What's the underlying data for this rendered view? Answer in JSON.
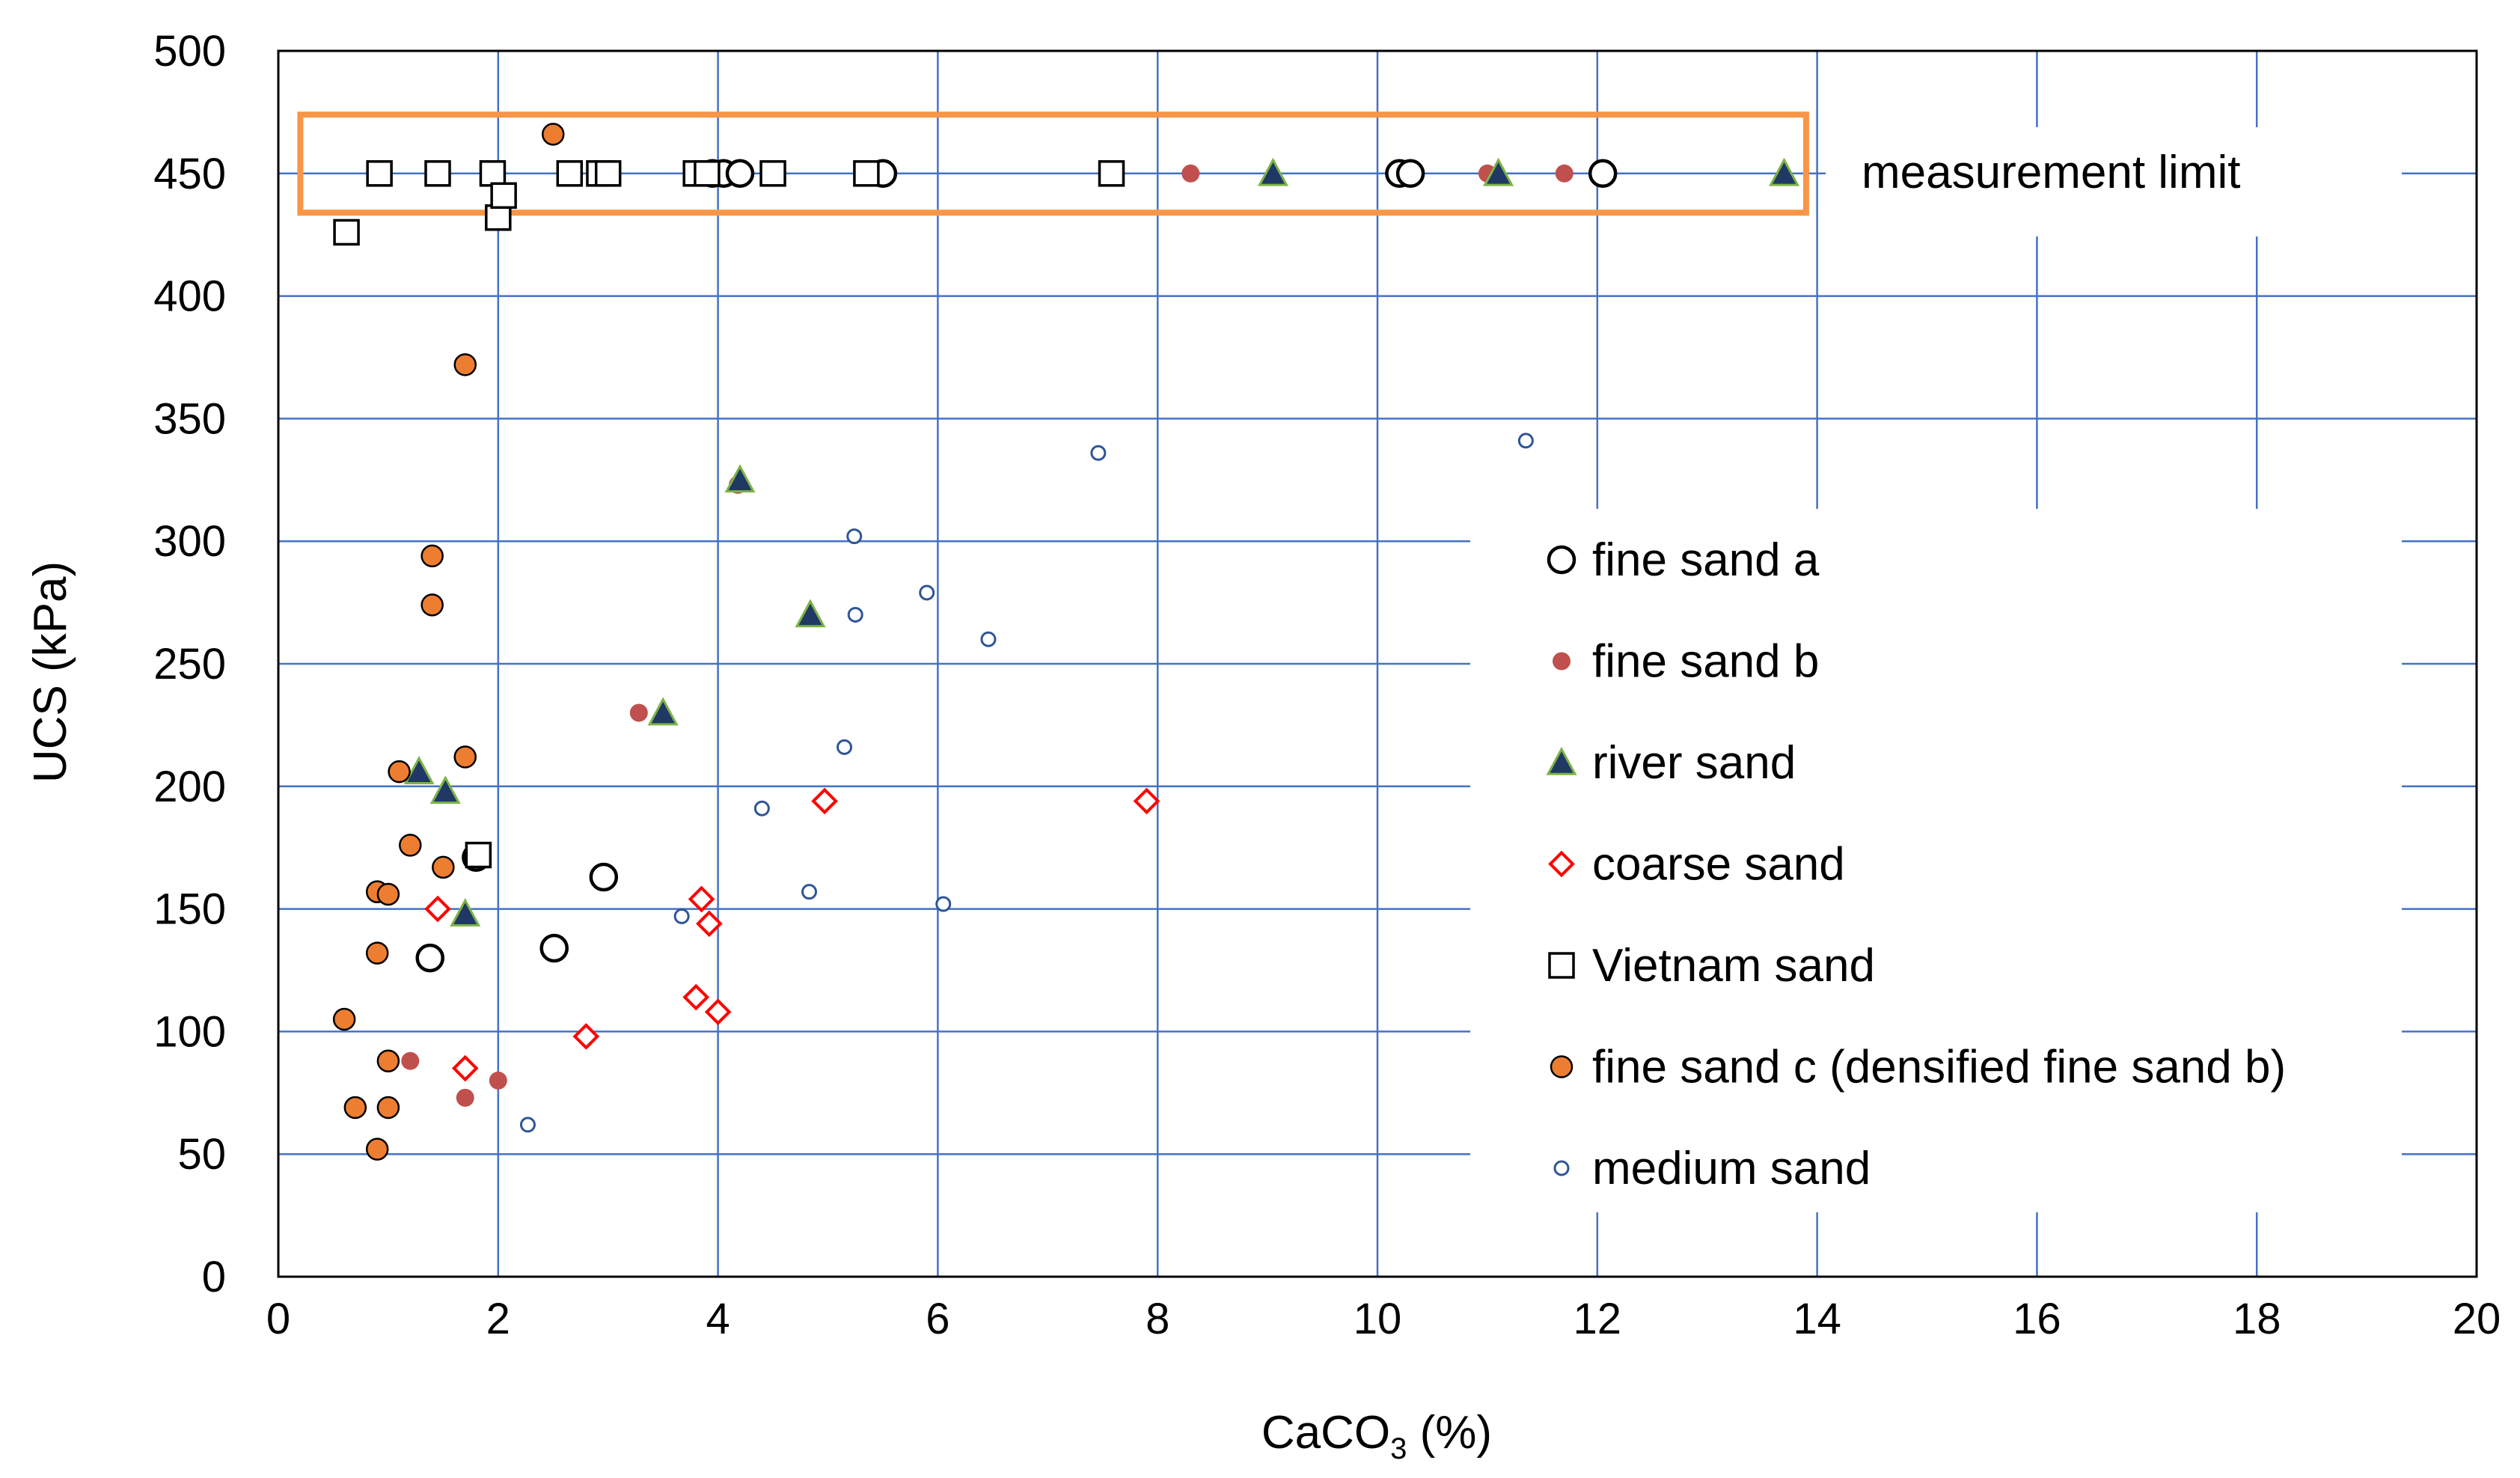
{
  "chart_data": {
    "type": "scatter",
    "xlabel": "CaCO",
    "xlabel_sub": "3",
    "xlabel_unit": " (%)",
    "ylabel": "UCS (kPa)",
    "xlim": [
      0,
      20
    ],
    "ylim": [
      0,
      500
    ],
    "xticks": [
      "0",
      "2",
      "4",
      "6",
      "8",
      "10",
      "12",
      "14",
      "16",
      "18",
      "20"
    ],
    "yticks": [
      "0",
      "50",
      "100",
      "150",
      "200",
      "250",
      "300",
      "350",
      "400",
      "450",
      "500"
    ],
    "grid": true,
    "annotation": "measurement limit",
    "measurement_limit_box": {
      "x": [
        0.2,
        13.9
      ],
      "y": [
        434,
        474
      ]
    },
    "series": [
      {
        "name": "fine sand a",
        "marker": "circle",
        "color": "#000000",
        "points": [
          [
            1.38,
            130
          ],
          [
            2.51,
            134
          ],
          [
            2.96,
            163
          ],
          [
            1.8,
            171
          ],
          [
            3.95,
            450
          ],
          [
            4.05,
            450
          ],
          [
            4.2,
            450
          ],
          [
            5.5,
            450
          ],
          [
            10.2,
            450
          ],
          [
            10.3,
            450
          ],
          [
            12.05,
            450
          ]
        ]
      },
      {
        "name": "fine sand b",
        "marker": "dot",
        "color": "#C0504D",
        "points": [
          [
            1.2,
            88
          ],
          [
            1.7,
            73
          ],
          [
            2.0,
            80
          ],
          [
            3.28,
            230
          ],
          [
            4.18,
            323
          ],
          [
            8.3,
            450
          ],
          [
            11.0,
            450
          ],
          [
            11.7,
            450
          ]
        ]
      },
      {
        "name": "river sand",
        "marker": "triangle",
        "color": "#1F3864",
        "points": [
          [
            1.28,
            206
          ],
          [
            1.52,
            198
          ],
          [
            1.7,
            148
          ],
          [
            3.5,
            230
          ],
          [
            4.2,
            325
          ],
          [
            4.84,
            270
          ],
          [
            9.05,
            450
          ],
          [
            11.1,
            450
          ],
          [
            13.7,
            450
          ]
        ]
      },
      {
        "name": "coarse sand",
        "marker": "diamond",
        "color": "#FF0000",
        "points": [
          [
            1.45,
            150
          ],
          [
            1.7,
            85
          ],
          [
            2.8,
            98
          ],
          [
            3.8,
            114
          ],
          [
            3.85,
            154
          ],
          [
            3.92,
            144
          ],
          [
            4.0,
            108
          ],
          [
            4.97,
            194
          ],
          [
            7.9,
            194
          ]
        ]
      },
      {
        "name": "Vietnam sand",
        "marker": "square",
        "color": "#000000",
        "points": [
          [
            0.62,
            426
          ],
          [
            0.92,
            450
          ],
          [
            1.45,
            450
          ],
          [
            1.95,
            450
          ],
          [
            2.0,
            432
          ],
          [
            2.05,
            441
          ],
          [
            2.65,
            450
          ],
          [
            2.92,
            450
          ],
          [
            3.0,
            450
          ],
          [
            3.8,
            450
          ],
          [
            3.9,
            450
          ],
          [
            4.5,
            450
          ],
          [
            5.35,
            450
          ],
          [
            7.58,
            450
          ],
          [
            1.82,
            172
          ]
        ]
      },
      {
        "name": "fine sand c (densified fine sand b)",
        "marker": "filled-circle",
        "color": "#ED7D31",
        "points": [
          [
            0.6,
            105
          ],
          [
            0.7,
            69
          ],
          [
            0.9,
            52
          ],
          [
            0.9,
            132
          ],
          [
            0.9,
            157
          ],
          [
            1.0,
            156
          ],
          [
            1.0,
            88
          ],
          [
            1.0,
            69
          ],
          [
            1.1,
            206
          ],
          [
            1.2,
            176
          ],
          [
            1.4,
            294
          ],
          [
            1.4,
            274
          ],
          [
            1.5,
            167
          ],
          [
            1.7,
            212
          ],
          [
            1.7,
            372
          ],
          [
            2.5,
            466
          ]
        ]
      },
      {
        "name": "medium sand",
        "marker": "small-circle",
        "color": "#2F5597",
        "points": [
          [
            2.27,
            62
          ],
          [
            3.67,
            147
          ],
          [
            4.4,
            191
          ],
          [
            4.83,
            157
          ],
          [
            5.15,
            216
          ],
          [
            5.24,
            302
          ],
          [
            5.25,
            270
          ],
          [
            5.9,
            279
          ],
          [
            6.05,
            152
          ],
          [
            6.46,
            260
          ],
          [
            7.46,
            336
          ],
          [
            11.35,
            341
          ]
        ]
      }
    ]
  }
}
